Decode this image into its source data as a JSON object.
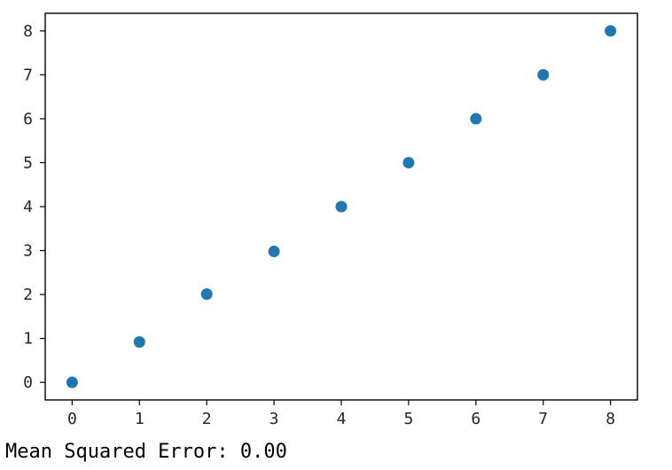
{
  "chart_data": {
    "type": "scatter",
    "title": "",
    "xlabel": "",
    "ylabel": "",
    "xlim": [
      -0.4,
      8.4
    ],
    "ylim": [
      -0.4,
      8.4
    ],
    "x_ticks": [
      0,
      1,
      2,
      3,
      4,
      5,
      6,
      7,
      8
    ],
    "y_ticks": [
      0,
      1,
      2,
      3,
      4,
      5,
      6,
      7,
      8
    ],
    "grid": false,
    "legend": "none",
    "series": [
      {
        "color": "#1f77b4",
        "points": [
          {
            "x": 0,
            "y": 0.0
          },
          {
            "x": 1,
            "y": 0.92
          },
          {
            "x": 2,
            "y": 2.01
          },
          {
            "x": 3,
            "y": 2.98
          },
          {
            "x": 4,
            "y": 4.0
          },
          {
            "x": 5,
            "y": 5.0
          },
          {
            "x": 6,
            "y": 6.0
          },
          {
            "x": 7,
            "y": 7.0
          },
          {
            "x": 8,
            "y": 8.0
          }
        ]
      }
    ]
  },
  "output": {
    "mse_text": "Mean Squared Error: 0.00"
  }
}
